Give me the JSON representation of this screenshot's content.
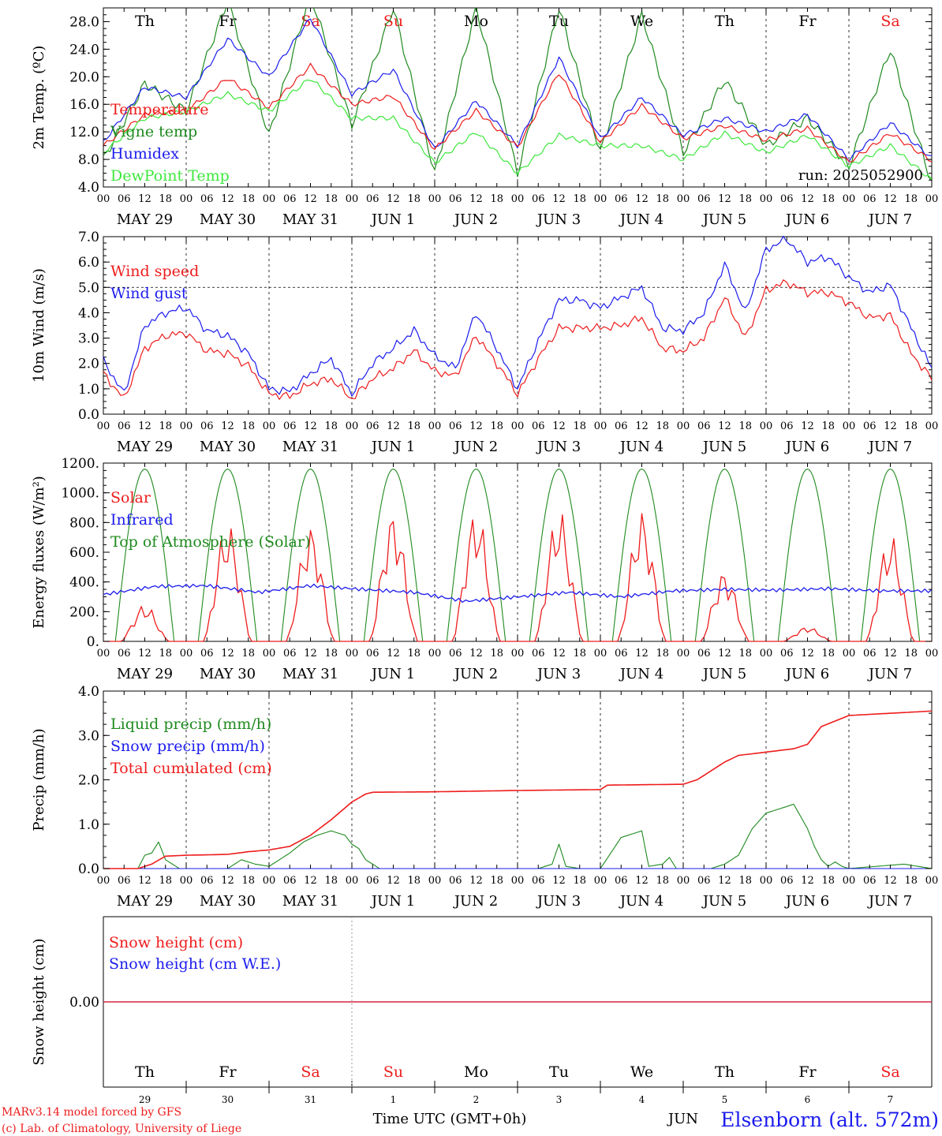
{
  "chart_data": [
    {
      "type": "line",
      "ylabel": "2m Temp. (ºC)",
      "ylim": [
        4,
        30
      ],
      "yticks": [
        "4.0",
        "8.0",
        "12.0",
        "16.0",
        "20.0",
        "24.0",
        "28.0"
      ],
      "ytick_values": [
        4,
        8,
        12,
        16,
        20,
        24,
        28
      ],
      "annotation": "run: 2025052900",
      "weekday_labels": true,
      "x_hours": [
        0,
        12,
        24,
        36,
        48,
        60,
        72,
        84,
        96,
        108,
        120,
        132,
        144,
        156,
        168,
        180,
        192,
        204,
        216,
        228,
        240
      ],
      "series": [
        {
          "name": "Temperature",
          "color": "#ee1c1c",
          "values": [
            10.0,
            14.5,
            15.0,
            19.8,
            15.5,
            21.6,
            16.0,
            17.2,
            9.5,
            15.1,
            9.8,
            20.6,
            10.5,
            15.8,
            11.0,
            12.9,
            10.8,
            12.5,
            7.6,
            11.8,
            7.8
          ]
        },
        {
          "name": "Vigne temp",
          "color": "#1f8a1f",
          "values": [
            8.0,
            19.0,
            15.0,
            31.0,
            11.5,
            32.0,
            13.0,
            30.0,
            6.0,
            30.0,
            6.0,
            30.0,
            9.0,
            29.0,
            9.0,
            19.5,
            10.0,
            14.0,
            7.0,
            24.0,
            4.5
          ]
        },
        {
          "name": "Humidex",
          "color": "#1c1cee",
          "values": [
            10.5,
            18.5,
            17.0,
            25.5,
            20.0,
            28.5,
            17.5,
            21.0,
            9.5,
            16.5,
            10.0,
            22.8,
            11.0,
            17.0,
            11.5,
            14.0,
            12.0,
            14.5,
            8.0,
            13.3,
            8.2
          ]
        },
        {
          "name": "DewPoint Temp",
          "color": "#3ee83e",
          "values": [
            9.0,
            14.0,
            15.0,
            17.5,
            15.0,
            19.8,
            14.0,
            14.0,
            7.5,
            12.0,
            6.0,
            11.5,
            10.0,
            10.0,
            8.0,
            11.8,
            9.0,
            11.5,
            7.0,
            10.0,
            5.0
          ]
        }
      ]
    },
    {
      "type": "line",
      "ylabel": "10m Wind (m/s)",
      "ylim": [
        0,
        7
      ],
      "yticks": [
        "0.0",
        "1.0",
        "2.0",
        "3.0",
        "4.0",
        "5.0",
        "6.0",
        "7.0"
      ],
      "ytick_values": [
        0,
        1,
        2,
        3,
        4,
        5,
        6,
        7
      ],
      "ref_line": 5.0,
      "x_hours": [
        0,
        6,
        12,
        18,
        24,
        30,
        36,
        42,
        48,
        54,
        60,
        66,
        72,
        78,
        84,
        90,
        96,
        102,
        108,
        114,
        120,
        126,
        132,
        138,
        144,
        150,
        156,
        162,
        168,
        174,
        180,
        186,
        192,
        198,
        204,
        210,
        216,
        222,
        228,
        234,
        240
      ],
      "series": [
        {
          "name": "Wind speed",
          "color": "#ee1c1c",
          "values": [
            1.6,
            0.6,
            2.6,
            3.1,
            3.2,
            2.5,
            2.4,
            1.9,
            0.8,
            0.7,
            1.2,
            1.4,
            0.6,
            1.4,
            1.8,
            2.5,
            1.7,
            1.5,
            3.1,
            2.0,
            0.8,
            2.2,
            3.4,
            3.4,
            3.4,
            3.5,
            3.8,
            2.6,
            2.5,
            3.0,
            4.6,
            3.0,
            4.9,
            5.2,
            4.8,
            4.8,
            4.4,
            3.8,
            3.9,
            2.4,
            1.4
          ]
        },
        {
          "name": "Wind gust",
          "color": "#1c1cee",
          "values": [
            2.1,
            0.8,
            3.5,
            4.0,
            4.2,
            3.3,
            3.1,
            2.4,
            1.0,
            0.9,
            1.6,
            2.2,
            0.8,
            2.0,
            2.6,
            3.3,
            2.3,
            1.8,
            4.0,
            2.6,
            1.0,
            2.9,
            4.5,
            4.5,
            4.2,
            4.6,
            5.0,
            3.4,
            3.3,
            4.0,
            5.9,
            4.0,
            6.5,
            6.9,
            6.0,
            6.2,
            5.4,
            4.8,
            5.1,
            3.4,
            1.8
          ]
        }
      ]
    },
    {
      "type": "line",
      "ylabel": "Energy fluxes (W/m²)",
      "ylim": [
        0,
        1200
      ],
      "yticks": [
        "0.",
        "200.",
        "400.",
        "600.",
        "800.",
        "1000.",
        "1200."
      ],
      "ytick_values": [
        0,
        200,
        400,
        600,
        800,
        1000,
        1200
      ],
      "toa_peak": 1160,
      "solar_peaks": [
        250,
        800,
        780,
        880,
        890,
        890,
        880,
        480,
        100,
        720
      ],
      "series": [
        {
          "name": "Solar",
          "color": "#ee1c1c"
        },
        {
          "name": "Infrared",
          "color": "#1c1cee",
          "values": [
            315,
            370,
            375,
            330,
            375,
            350,
            330,
            270,
            300,
            330,
            300,
            340,
            350,
            345,
            355,
            340,
            340
          ]
        },
        {
          "name": "Top of Atmosphere (Solar)",
          "color": "#1f8a1f"
        }
      ]
    },
    {
      "type": "line",
      "ylabel": "Precip (mm/h)",
      "ylim": [
        0,
        4
      ],
      "yticks": [
        "0.0",
        "1.0",
        "2.0",
        "3.0",
        "4.0"
      ],
      "ytick_values": [
        0,
        1,
        2,
        3,
        4
      ],
      "series": [
        {
          "name": "Liquid precip (mm/h)",
          "color": "#1f8a1f",
          "x_hours": [
            0,
            10,
            12,
            14,
            16,
            18,
            20,
            22,
            24,
            36,
            40,
            44,
            48,
            54,
            58,
            62,
            66,
            70,
            72,
            74,
            76,
            80,
            84,
            96,
            126,
            130,
            132,
            134,
            138,
            144,
            150,
            152,
            156,
            158,
            162,
            164,
            166,
            168,
            176,
            180,
            184,
            186,
            188,
            192,
            200,
            204,
            206,
            208,
            210,
            212,
            214,
            216,
            232,
            240
          ],
          "values": [
            0,
            0,
            0.3,
            0.35,
            0.6,
            0.2,
            0.1,
            0,
            0,
            0,
            0.2,
            0.1,
            0.05,
            0.35,
            0.6,
            0.75,
            0.85,
            0.75,
            0.55,
            0.45,
            0.2,
            0,
            0,
            0,
            0,
            0.1,
            0.55,
            0.05,
            0,
            0,
            0.7,
            0.75,
            0.85,
            0.05,
            0.1,
            0.25,
            0,
            0,
            0,
            0.1,
            0.3,
            0.6,
            0.9,
            1.25,
            1.45,
            0.9,
            0.5,
            0.2,
            0.05,
            0.15,
            0.05,
            0,
            0.1,
            0
          ]
        },
        {
          "name": "Snow precip (mm/h)",
          "color": "#1c1cee",
          "x_hours": [
            0,
            240
          ],
          "values": [
            0,
            0
          ]
        },
        {
          "name": "Total cumulated (cm)",
          "color": "#ee1c1c",
          "x_hours": [
            0,
            10,
            14,
            18,
            24,
            30,
            36,
            42,
            48,
            54,
            60,
            66,
            72,
            76,
            78,
            96,
            120,
            144,
            146,
            168,
            172,
            180,
            184,
            200,
            204,
            208,
            216,
            240
          ],
          "values": [
            0,
            0,
            0.1,
            0.28,
            0.3,
            0.31,
            0.32,
            0.38,
            0.42,
            0.5,
            0.75,
            1.1,
            1.5,
            1.68,
            1.72,
            1.73,
            1.76,
            1.78,
            1.88,
            1.9,
            2.0,
            2.4,
            2.55,
            2.7,
            2.8,
            3.2,
            3.45,
            3.55
          ]
        }
      ]
    },
    {
      "type": "line",
      "ylabel": "Snow height (cm)",
      "yticks": [
        "0.00"
      ],
      "series": [
        {
          "name": "Snow height (cm)",
          "color": "#ee1c1c",
          "values": [
            0,
            0
          ]
        },
        {
          "name": "Snow height (cm W.E.)",
          "color": "#1c1cee",
          "values": [
            0,
            0
          ]
        }
      ]
    }
  ],
  "date_labels": [
    "MAY 29",
    "MAY 30",
    "MAY 31",
    "JUN  1",
    "JUN  2",
    "JUN  3",
    "JUN  4",
    "JUN  5",
    "JUN  6",
    "JUN  7"
  ],
  "weekdays": [
    "Th",
    "Fr",
    "Sa",
    "Su",
    "Mo",
    "Tu",
    "We",
    "Th",
    "Fr",
    "Sa"
  ],
  "weekend_flags": [
    false,
    false,
    true,
    true,
    false,
    false,
    false,
    false,
    false,
    true
  ],
  "day_numbers": [
    "29",
    "30",
    "31",
    "1",
    "2",
    "3",
    "4",
    "5",
    "6",
    "7"
  ],
  "hour_labels": [
    "00",
    "06",
    "12",
    "18"
  ],
  "hour_end_label": "00",
  "footer": {
    "model_line": "MARv3.14 model forced by GFS",
    "copyright_line": "(c) Lab. of Climatology, University of Liege",
    "axis_title": "Time UTC (GMT+0h)",
    "month_label": "JUN",
    "location": "Elsenborn (alt. 572m)"
  },
  "colors": {
    "red": "#ee1c1c",
    "green": "#1f8a1f",
    "blue": "#1c1cee",
    "light_green": "#3ee83e",
    "weekend": "#ee1c1c",
    "axis": "#000000"
  }
}
